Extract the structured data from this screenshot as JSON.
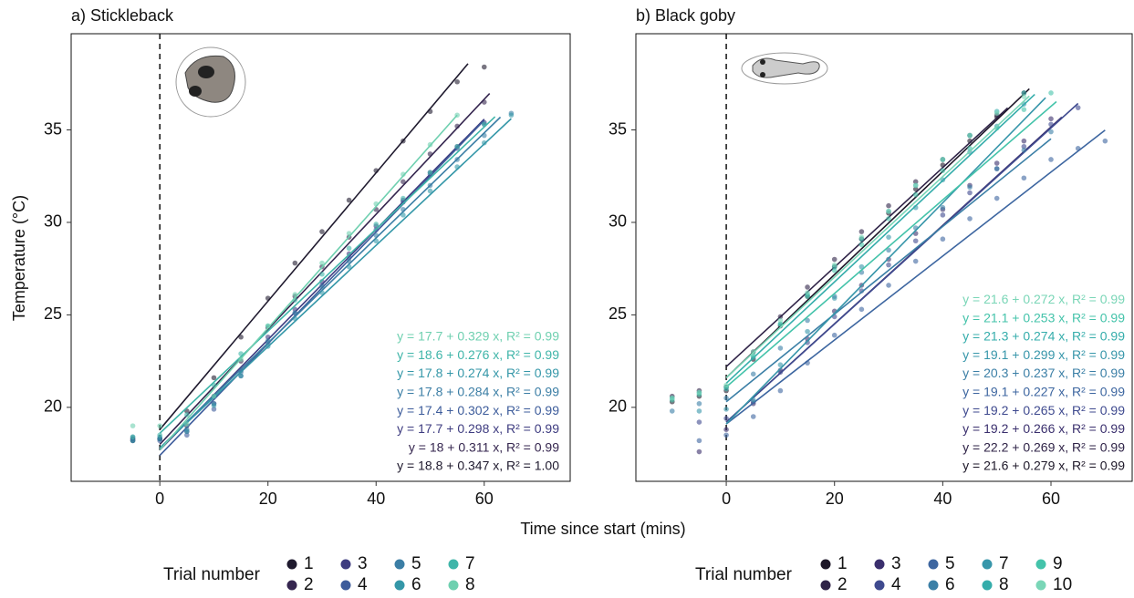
{
  "xlabel": "Time since start (mins)",
  "ylabel": "Temperature (°C)",
  "chart_data": [
    {
      "type": "scatter",
      "title": "a) Stickleback",
      "legend_title": "Trial number",
      "xlim": [
        -16.4,
        75.9
      ],
      "ylim": [
        16,
        40.2
      ],
      "xticks": [
        0,
        20,
        40,
        60
      ],
      "yticks": [
        20,
        25,
        30,
        35
      ],
      "vline": 0,
      "grid": false,
      "series": [
        {
          "name": "1",
          "color": "#1f1a2e",
          "equation": "y = 18.8 + 0.347 x, R² = 1.00",
          "x": [
            -5,
            0,
            5,
            10,
            15,
            20,
            25,
            30,
            35,
            40,
            45,
            50,
            55,
            60
          ],
          "values": [
            18.2,
            18.3,
            19.8,
            21.6,
            23.8,
            25.9,
            27.8,
            29.5,
            31.2,
            32.8,
            34.4,
            36.0,
            37.6,
            38.4
          ],
          "fit": {
            "x": [
              0,
              57
            ],
            "values": [
              18.8,
              38.58
            ]
          }
        },
        {
          "name": "2",
          "color": "#35264f",
          "equation": "y = 18 + 0.311 x, R² = 0.99",
          "x": [
            -5,
            0,
            5,
            10,
            15,
            20,
            25,
            30,
            35,
            40,
            45,
            50,
            55,
            60
          ],
          "values": [
            18.3,
            18.3,
            19.0,
            20.6,
            22.5,
            24.3,
            26.0,
            27.6,
            29.2,
            30.7,
            32.2,
            33.7,
            35.2,
            36.5
          ],
          "fit": {
            "x": [
              0,
              61
            ],
            "values": [
              18.0,
              36.97
            ]
          }
        },
        {
          "name": "3",
          "color": "#3e3c80",
          "equation": "y = 17.7 + 0.298 x, R² = 0.99",
          "x": [
            -5,
            0,
            5,
            10,
            15,
            20,
            25,
            30,
            35,
            40,
            45,
            50,
            55,
            60
          ],
          "values": [
            18.3,
            18.3,
            18.7,
            20.2,
            22.0,
            23.8,
            25.3,
            26.8,
            28.3,
            29.8,
            31.2,
            32.7,
            34.1,
            35.4
          ],
          "fit": {
            "x": [
              0,
              60
            ],
            "values": [
              17.7,
              35.58
            ]
          }
        },
        {
          "name": "4",
          "color": "#3d5c9b",
          "equation": "y = 17.4 + 0.302 x, R² = 0.99",
          "x": [
            -5,
            0,
            5,
            10,
            15,
            20,
            25,
            30,
            35,
            40,
            45,
            50,
            55,
            60
          ],
          "values": [
            18.2,
            18.2,
            18.5,
            19.9,
            21.7,
            23.5,
            25.1,
            26.6,
            28.1,
            29.6,
            31.1,
            32.6,
            34.0,
            35.3
          ],
          "fit": {
            "x": [
              0,
              60
            ],
            "values": [
              17.4,
              35.52
            ]
          }
        },
        {
          "name": "5",
          "color": "#3b7ea5",
          "equation": "y = 17.8 + 0.284 x, R² = 0.99",
          "x": [
            -5,
            0,
            5,
            10,
            15,
            20,
            25,
            30,
            35,
            40,
            45,
            50,
            55,
            60,
            65
          ],
          "values": [
            18.4,
            18.4,
            18.8,
            20.2,
            21.9,
            23.6,
            25.1,
            26.5,
            27.9,
            29.3,
            30.7,
            32.0,
            33.4,
            34.7,
            35.9
          ],
          "fit": {
            "x": [
              0,
              63
            ],
            "values": [
              17.8,
              35.69
            ]
          }
        },
        {
          "name": "6",
          "color": "#3497a8",
          "equation": "y = 17.8 + 0.274 x, R² = 0.99",
          "x": [
            -5,
            0,
            5,
            10,
            15,
            20,
            25,
            30,
            35,
            40,
            45,
            50,
            55,
            60,
            65
          ],
          "values": [
            18.2,
            18.3,
            18.7,
            20.1,
            21.7,
            23.3,
            24.8,
            26.2,
            27.6,
            29.0,
            30.4,
            31.7,
            33.0,
            34.3,
            35.8
          ],
          "fit": {
            "x": [
              0,
              65
            ],
            "values": [
              17.8,
              35.61
            ]
          }
        },
        {
          "name": "7",
          "color": "#3fb5a9",
          "equation": "y = 18.6 + 0.276 x, R² = 0.99",
          "x": [
            -5,
            0,
            5,
            10,
            15,
            20,
            25,
            30,
            35,
            40,
            45,
            50,
            55,
            60
          ],
          "values": [
            18.4,
            18.5,
            19.6,
            21.2,
            22.9,
            24.4,
            25.8,
            27.2,
            28.6,
            29.9,
            31.3,
            32.7,
            34.1,
            35.3
          ],
          "fit": {
            "x": [
              0,
              62
            ],
            "values": [
              18.6,
              35.71
            ]
          }
        },
        {
          "name": "8",
          "color": "#6fd0b0",
          "equation": "y = 17.7 + 0.329 x, R² = 0.99",
          "x": [
            -5,
            0,
            5,
            10,
            15,
            20,
            25,
            30,
            35,
            40,
            45,
            50,
            55
          ],
          "values": [
            19.0,
            19.0,
            19.1,
            20.6,
            22.6,
            24.4,
            26.1,
            27.8,
            29.4,
            31.0,
            32.6,
            34.2,
            35.8
          ],
          "fit": {
            "x": [
              0,
              55
            ],
            "values": [
              17.7,
              35.8
            ]
          }
        }
      ]
    },
    {
      "type": "scatter",
      "title": "b) Black goby",
      "legend_title": "Trial number",
      "xlim": [
        -16.7,
        75
      ],
      "ylim": [
        16,
        40.2
      ],
      "xticks": [
        0,
        20,
        40,
        60
      ],
      "yticks": [
        20,
        25,
        30,
        35
      ],
      "vline": 0,
      "grid": false,
      "series": [
        {
          "name": "1",
          "color": "#1d1728",
          "equation": "y = 21.6 + 0.279 x, R² = 0.99",
          "x": [
            -10,
            -5,
            0,
            5,
            10,
            15,
            20,
            25,
            30,
            35,
            40,
            45,
            50,
            55
          ],
          "values": [
            20.3,
            20.6,
            20.9,
            22.6,
            24.4,
            26.0,
            27.6,
            29.1,
            30.5,
            31.8,
            33.1,
            34.4,
            35.7,
            37.0
          ],
          "fit": {
            "x": [
              0,
              56
            ],
            "values": [
              21.6,
              37.22
            ]
          }
        },
        {
          "name": "2",
          "color": "#2f2347",
          "equation": "y = 22.2 + 0.269 x, R² = 0.99",
          "x": [
            -10,
            -5,
            0,
            5,
            10,
            15,
            20,
            25,
            30,
            35,
            40,
            45,
            50
          ],
          "values": [
            20.6,
            20.9,
            21.1,
            23.0,
            24.9,
            26.5,
            28.0,
            29.5,
            30.9,
            32.2,
            33.4,
            34.7,
            35.8
          ],
          "fit": {
            "x": [
              0,
              52
            ],
            "values": [
              22.2,
              36.19
            ]
          }
        },
        {
          "name": "3",
          "color": "#3a2f6d",
          "equation": "y = 19.2 + 0.266 x, R² = 0.99",
          "x": [
            -5,
            0,
            5,
            10,
            15,
            20,
            25,
            30,
            35,
            40,
            45,
            50,
            55,
            60
          ],
          "values": [
            17.6,
            18.8,
            20.2,
            22.0,
            23.7,
            25.2,
            26.6,
            28.0,
            29.4,
            30.7,
            32.0,
            33.2,
            34.4,
            35.6
          ],
          "fit": {
            "x": [
              0,
              62
            ],
            "values": [
              19.2,
              35.69
            ]
          }
        },
        {
          "name": "4",
          "color": "#3f4a8f",
          "equation": "y = 19.2 + 0.265 x, R² = 0.99",
          "x": [
            -5,
            0,
            5,
            10,
            15,
            20,
            25,
            30,
            35,
            40,
            45,
            50,
            55,
            60,
            65
          ],
          "values": [
            19.2,
            19.4,
            20.3,
            21.9,
            23.5,
            24.9,
            26.3,
            27.7,
            29.0,
            30.4,
            31.6,
            32.9,
            34.1,
            35.3,
            36.2
          ],
          "fit": {
            "x": [
              0,
              65
            ],
            "values": [
              19.2,
              36.43
            ]
          }
        },
        {
          "name": "5",
          "color": "#3d66a0",
          "equation": "y = 19.1 + 0.227 x, R² = 0.99",
          "x": [
            -5,
            0,
            5,
            10,
            15,
            20,
            25,
            30,
            35,
            40,
            45,
            50,
            55,
            60,
            65,
            70
          ],
          "values": [
            18.2,
            18.5,
            19.5,
            20.9,
            22.4,
            23.9,
            25.3,
            26.6,
            27.9,
            29.1,
            30.2,
            31.3,
            32.4,
            33.4,
            34.0,
            34.4
          ],
          "fit": {
            "x": [
              0,
              70
            ],
            "values": [
              19.1,
              34.99
            ]
          }
        },
        {
          "name": "6",
          "color": "#3b7fa6",
          "equation": "y = 20.3 + 0.237 x, R² = 0.99",
          "x": [
            -10,
            -5,
            0,
            5,
            10,
            15,
            20,
            25,
            30,
            35,
            40,
            45,
            50,
            55,
            60
          ],
          "values": [
            19.8,
            20.2,
            20.5,
            21.8,
            23.2,
            24.7,
            26.0,
            27.3,
            28.5,
            29.7,
            30.8,
            31.9,
            32.9,
            33.9,
            34.9
          ],
          "fit": {
            "x": [
              0,
              60
            ],
            "values": [
              20.3,
              34.52
            ]
          }
        },
        {
          "name": "7",
          "color": "#3796aa",
          "equation": "y = 19.1 + 0.299 x, R² = 0.99",
          "x": [
            -5,
            0,
            5,
            10,
            15,
            20,
            25,
            30,
            35,
            40,
            45,
            50,
            55
          ],
          "values": [
            19.8,
            19.9,
            20.4,
            22.3,
            24.1,
            25.9,
            27.6,
            29.2,
            30.8,
            32.3,
            33.8,
            35.2,
            36.4
          ],
          "fit": {
            "x": [
              0,
              59
            ],
            "values": [
              19.1,
              36.74
            ]
          }
        },
        {
          "name": "8",
          "color": "#35adab",
          "equation": "y = 21.3 + 0.274 x, R² = 0.99",
          "x": [
            -10,
            -5,
            0,
            5,
            10,
            15,
            20,
            25,
            30,
            35,
            40,
            45,
            50,
            55
          ],
          "values": [
            20.5,
            20.8,
            21.0,
            22.7,
            24.5,
            26.1,
            27.6,
            29.1,
            30.6,
            32.0,
            33.4,
            34.7,
            36.0,
            37.0
          ],
          "fit": {
            "x": [
              0,
              57
            ],
            "values": [
              21.3,
              36.92
            ]
          }
        },
        {
          "name": "9",
          "color": "#44c3aa",
          "equation": "y = 21.1 + 0.253 x, R² = 0.99",
          "x": [
            -10,
            -5,
            0,
            5,
            10,
            15,
            20,
            25,
            30,
            35,
            40,
            45,
            50,
            55,
            60
          ],
          "values": [
            20.4,
            20.7,
            21.1,
            22.8,
            24.5,
            26.0,
            27.4,
            28.8,
            30.2,
            31.5,
            32.8,
            34.0,
            35.1,
            36.1,
            37.0
          ],
          "fit": {
            "x": [
              0,
              61
            ],
            "values": [
              21.1,
              36.53
            ]
          }
        },
        {
          "name": "10",
          "color": "#7ad6b7",
          "equation": "y = 21.6 + 0.272 x, R² = 0.99",
          "x": [
            -10,
            -5,
            0,
            5,
            10,
            15,
            20,
            25,
            30,
            35,
            40,
            45,
            50,
            55
          ],
          "values": [
            20.5,
            20.8,
            21.2,
            23.0,
            24.7,
            26.2,
            27.7,
            29.2,
            30.6,
            32.0,
            33.4,
            34.7,
            35.9,
            36.8
          ],
          "fit": {
            "x": [
              0,
              56
            ],
            "values": [
              21.6,
              36.83
            ]
          }
        }
      ]
    }
  ]
}
